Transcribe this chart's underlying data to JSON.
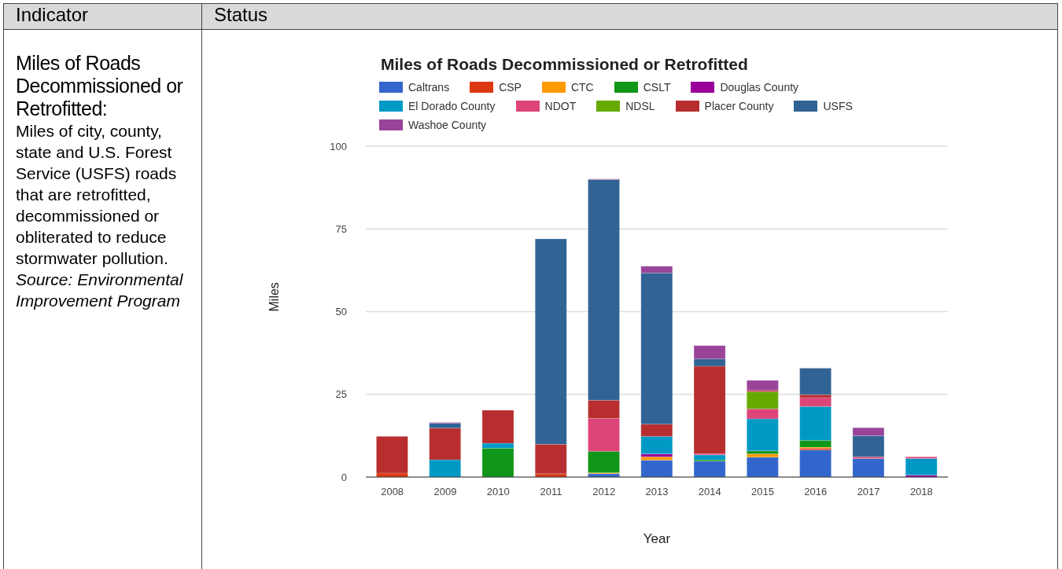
{
  "chart_data": {
    "type": "bar",
    "title": "Miles of Roads Decommissioned or Retrofitted",
    "xlabel": "Year",
    "ylabel": "Miles",
    "annotations": [
      "Indicator",
      "Status",
      "Miles of Roads Decommissioned or Retrofitted:",
      "Miles of city, county, state and U.S. Forest Service (USFS) roads that are retrofitted, decommissioned or obliterated to reduce stormwater pollution.",
      "Source: Environmental Improvement Program"
    ],
    "categories": [
      "2008",
      "2009",
      "2010",
      "2011",
      "2012",
      "2013",
      "2014",
      "2015",
      "2016",
      "2017",
      "2018"
    ],
    "stacked": true,
    "ylim": [
      0,
      100
    ],
    "yticks": [
      0,
      25,
      50,
      75,
      100
    ],
    "grid": "y",
    "legend": "top",
    "series": [
      {
        "name": "Caltrans",
        "color": "#3366cc",
        "values": [
          null,
          null,
          null,
          null,
          1.0,
          5.1,
          4.8,
          6.0,
          8.2,
          5.6,
          null
        ]
      },
      {
        "name": "CSP",
        "color": "#dc3912",
        "values": [
          1.2,
          null,
          null,
          1.0,
          null,
          null,
          null,
          null,
          0.5,
          null,
          null
        ]
      },
      {
        "name": "CTC",
        "color": "#ff9900",
        "values": [
          null,
          null,
          null,
          null,
          0.3,
          1.0,
          null,
          1.0,
          0.3,
          null,
          null
        ]
      },
      {
        "name": "CSLT",
        "color": "#109618",
        "values": [
          null,
          null,
          8.7,
          null,
          6.5,
          null,
          0.4,
          0.9,
          2.1,
          null,
          null
        ]
      },
      {
        "name": "Douglas County",
        "color": "#990099",
        "values": [
          null,
          null,
          null,
          null,
          null,
          0.9,
          null,
          null,
          null,
          null,
          0.6
        ]
      },
      {
        "name": "El Dorado County",
        "color": "#0099c6",
        "values": [
          null,
          5.2,
          1.5,
          null,
          null,
          5.3,
          1.5,
          9.7,
          10.2,
          null,
          5.0
        ]
      },
      {
        "name": "NDOT",
        "color": "#dd4477",
        "values": [
          null,
          null,
          null,
          null,
          9.9,
          null,
          0.4,
          3.0,
          2.7,
          0.5,
          0.5
        ]
      },
      {
        "name": "NDSL",
        "color": "#66aa00",
        "values": [
          null,
          null,
          null,
          null,
          null,
          null,
          null,
          5.2,
          null,
          null,
          null
        ]
      },
      {
        "name": "Placer County",
        "color": "#b82e2e",
        "values": [
          11.1,
          9.6,
          10.0,
          8.9,
          5.5,
          3.7,
          26.4,
          0.4,
          0.9,
          null,
          null
        ]
      },
      {
        "name": "USFS",
        "color": "#316395",
        "values": [
          null,
          1.5,
          null,
          62.1,
          66.7,
          45.7,
          2.2,
          null,
          8.0,
          6.4,
          null
        ]
      },
      {
        "name": "Washoe County",
        "color": "#994499",
        "values": [
          null,
          0.2,
          null,
          null,
          0.2,
          2.0,
          4.0,
          3.0,
          null,
          2.4,
          null
        ]
      }
    ]
  }
}
